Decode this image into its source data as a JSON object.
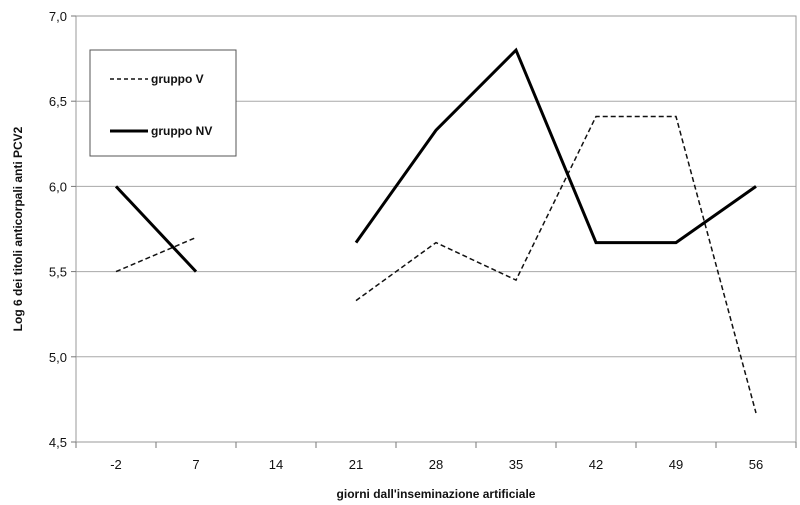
{
  "chart_data": {
    "type": "line",
    "categories": [
      "-2",
      "7",
      "14",
      "21",
      "28",
      "35",
      "42",
      "49",
      "56"
    ],
    "xlabel": "giorni dall'inseminazione artificiale",
    "ylabel": "Log 6 dei titoli anticorpali anti PCV2",
    "ylim": [
      4.5,
      7.0
    ],
    "yticks": [
      "7,0",
      "6,5",
      "6,0",
      "5,5",
      "5,0",
      "4,5"
    ],
    "grid": "horizontal",
    "legend_position": "top-left",
    "series": [
      {
        "name": "gruppo V",
        "style": "dashed",
        "color": "#111111",
        "segments": [
          [
            [
              "-2",
              5.5
            ],
            [
              "7",
              5.7
            ]
          ],
          [
            [
              "21",
              5.33
            ],
            [
              "28",
              5.67
            ],
            [
              "35",
              5.45
            ],
            [
              "42",
              6.41
            ],
            [
              "49",
              6.41
            ],
            [
              "56",
              4.67
            ]
          ]
        ]
      },
      {
        "name": "gruppo NV",
        "style": "solid",
        "color": "#000000",
        "segments": [
          [
            [
              "-2",
              6.0
            ],
            [
              "7",
              5.5
            ]
          ],
          [
            [
              "21",
              5.67
            ],
            [
              "28",
              6.33
            ],
            [
              "35",
              6.8
            ],
            [
              "42",
              5.67
            ],
            [
              "49",
              5.67
            ],
            [
              "56",
              6.0
            ]
          ]
        ]
      }
    ]
  }
}
